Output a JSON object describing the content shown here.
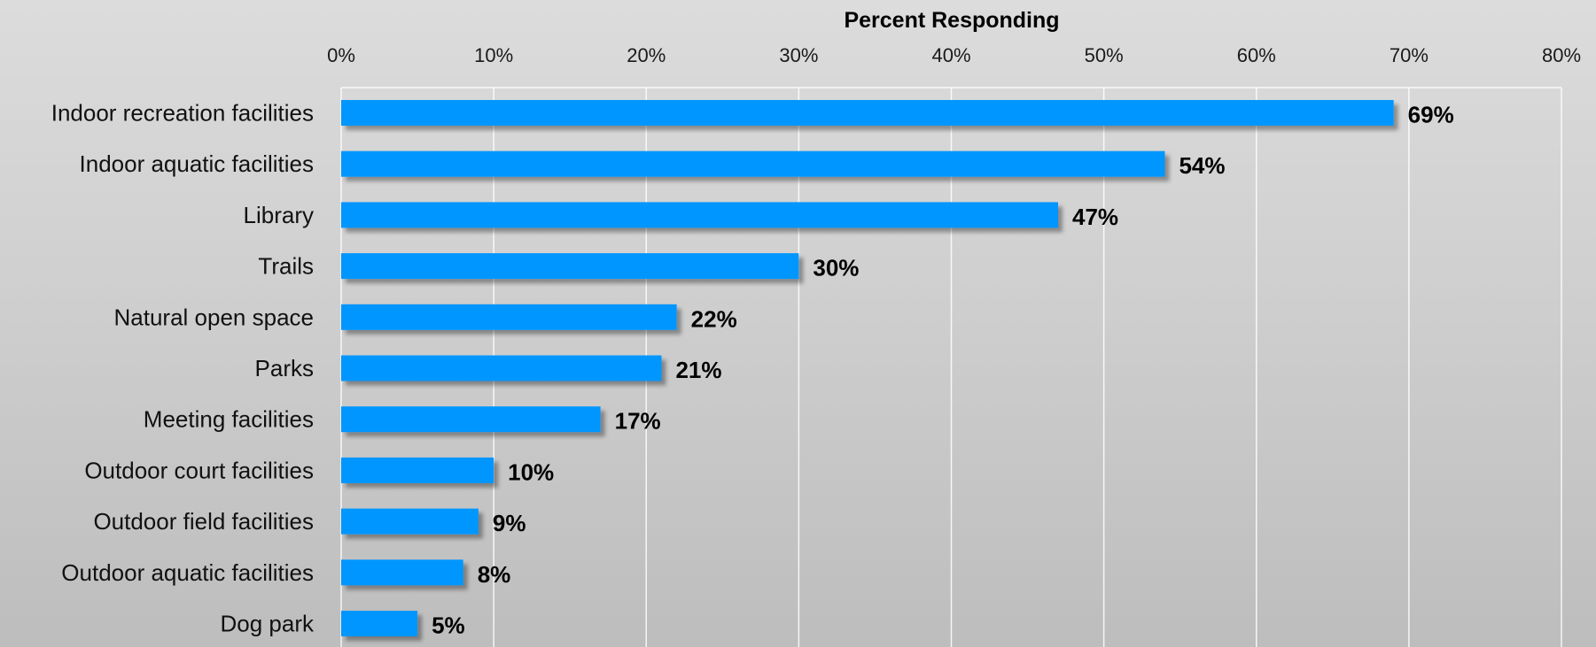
{
  "chart_data": {
    "type": "bar",
    "orientation": "horizontal",
    "xlabel": "Percent Responding",
    "xlabel_position": "top",
    "xlim": [
      0,
      80
    ],
    "x_ticks": [
      0,
      10,
      20,
      30,
      40,
      50,
      60,
      70,
      80
    ],
    "x_tick_labels": [
      "0%",
      "10%",
      "20%",
      "30%",
      "40%",
      "50%",
      "60%",
      "70%",
      "80%"
    ],
    "categories": [
      "Indoor recreation facilities",
      "Indoor aquatic facilities",
      "Library",
      "Trails",
      "Natural open space",
      "Parks",
      "Meeting facilities",
      "Outdoor court facilities",
      "Outdoor field facilities",
      "Outdoor aquatic facilities",
      "Dog park"
    ],
    "values": [
      69,
      54,
      47,
      30,
      22,
      21,
      17,
      10,
      9,
      8,
      5
    ],
    "data_labels": [
      "69%",
      "54%",
      "47%",
      "30%",
      "22%",
      "21%",
      "17%",
      "10%",
      "9%",
      "8%",
      "5%"
    ],
    "grid": true,
    "legend": "none",
    "colors": {
      "bar": "#0096ff",
      "grid": "#ffffff",
      "text": "#000000"
    }
  }
}
